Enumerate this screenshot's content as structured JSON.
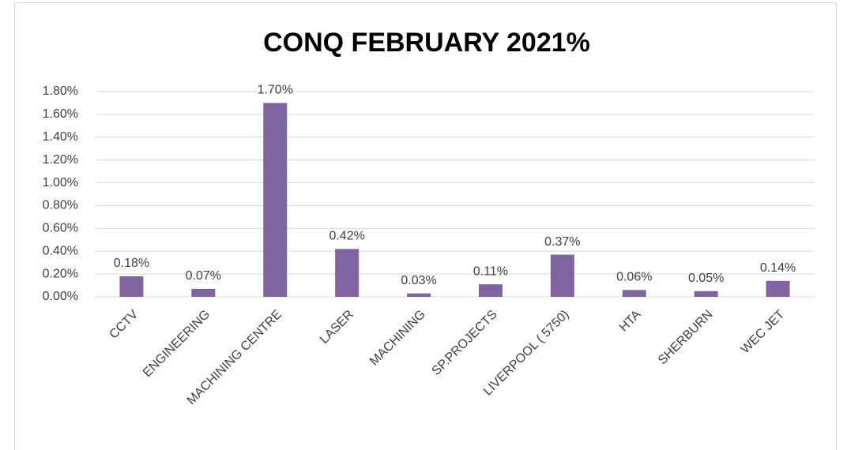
{
  "chart_data": {
    "type": "bar",
    "title": "CONQ FEBRUARY 2021%",
    "categories": [
      "CCTV",
      "ENGINEERING",
      "MACHINING CENTRE",
      "LASER",
      "MACHINING",
      "SP.PROJECTS",
      "LIVERPOOL ( 5750)",
      "HTA",
      "SHERBURN",
      "WEC JET"
    ],
    "values": [
      0.18,
      0.07,
      1.7,
      0.42,
      0.03,
      0.11,
      0.37,
      0.06,
      0.05,
      0.14
    ],
    "value_labels": [
      "0.18%",
      "0.07%",
      "1.70%",
      "0.42%",
      "0.03%",
      "0.11%",
      "0.37%",
      "0.06%",
      "0.05%",
      "0.14%"
    ],
    "color": "#8064a2",
    "ylim": [
      0,
      1.8
    ],
    "yticks": [
      {
        "value": 0,
        "label": "0.00%"
      },
      {
        "value": 0.2,
        "label": "0.20%"
      },
      {
        "value": 0.4,
        "label": "0.40%"
      },
      {
        "value": 0.6,
        "label": "0.60%"
      },
      {
        "value": 0.8,
        "label": "0.80%"
      },
      {
        "value": 1.0,
        "label": "1.00%"
      },
      {
        "value": 1.2,
        "label": "1.20%"
      },
      {
        "value": 1.4,
        "label": "1.40%"
      },
      {
        "value": 1.6,
        "label": "1.60%"
      },
      {
        "value": 1.8,
        "label": "1.80%"
      }
    ],
    "grid": true
  }
}
